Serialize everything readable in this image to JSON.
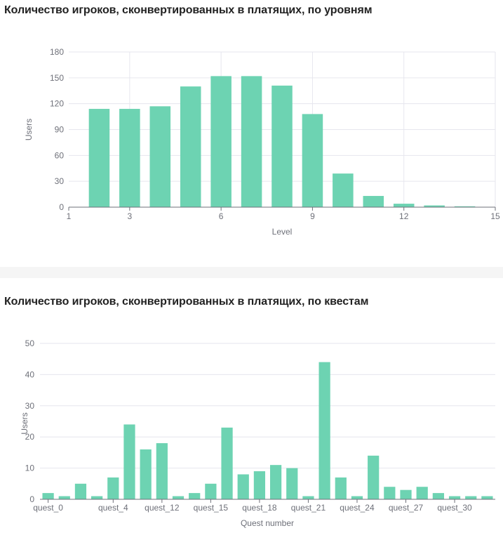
{
  "chart_data": [
    {
      "type": "bar",
      "title": "Количество игроков, сконвертированных в платящих, по уровням",
      "xlabel": "Level",
      "ylabel": "Users",
      "x_axis": "value",
      "xlim": [
        1,
        15
      ],
      "xticks": [
        "1",
        "3",
        "6",
        "9",
        "12",
        "15"
      ],
      "xtick_values": [
        1,
        3,
        6,
        9,
        12,
        15
      ],
      "ylim": [
        0,
        180
      ],
      "yticks": [
        "0",
        "30",
        "60",
        "90",
        "120",
        "150",
        "180"
      ],
      "ytick_values": [
        0,
        30,
        60,
        90,
        120,
        150,
        180
      ],
      "grid": true,
      "bar_color": "#6dd3b2",
      "x": [
        2,
        3,
        4,
        5,
        6,
        7,
        8,
        9,
        10,
        11,
        12,
        13,
        14
      ],
      "values": [
        114,
        114,
        117,
        140,
        152,
        152,
        141,
        108,
        39,
        13,
        4,
        2,
        1
      ]
    },
    {
      "type": "bar",
      "title": "Количество игроков, сконвертированных в платящих, по квестам",
      "xlabel": "Quest number",
      "ylabel": "Users",
      "x_axis": "category",
      "categories": [
        "quest_0",
        "quest_1",
        "quest_2",
        "quest_3",
        "quest_4",
        "quest_5",
        "quest_11",
        "quest_12",
        "quest_13",
        "quest_14",
        "quest_15",
        "quest_16",
        "quest_17",
        "quest_18",
        "quest_19",
        "quest_20",
        "quest_21",
        "quest_22",
        "quest_23",
        "quest_24",
        "quest_25",
        "quest_26",
        "quest_27",
        "quest_28",
        "quest_29",
        "quest_30",
        "quest_31",
        "quest_32"
      ],
      "shown_tick_labels": [
        "quest_0",
        "quest_4",
        "quest_12",
        "quest_15",
        "quest_18",
        "quest_21",
        "quest_24",
        "quest_27",
        "quest_30"
      ],
      "values": [
        2,
        1,
        5,
        1,
        7,
        24,
        16,
        18,
        1,
        2,
        5,
        23,
        8,
        9,
        11,
        10,
        1,
        44,
        7,
        1,
        14,
        4,
        3,
        4,
        2,
        1,
        1,
        1
      ],
      "ylim": [
        0,
        50
      ],
      "yticks": [
        "0",
        "10",
        "20",
        "30",
        "40",
        "50"
      ],
      "ytick_values": [
        0,
        10,
        20,
        30,
        40,
        50
      ],
      "grid": true,
      "bar_color": "#6dd3b2"
    }
  ]
}
